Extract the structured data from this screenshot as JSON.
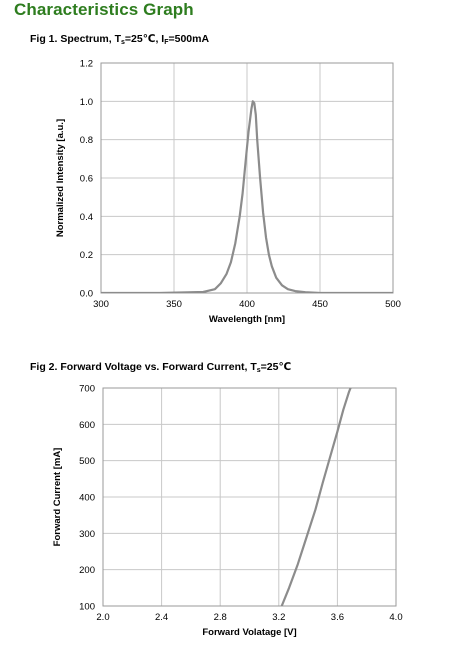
{
  "page": {
    "title": "Characteristics Graph"
  },
  "figures": [
    {
      "caption_parts": [
        "Fig 1. Spectrum, T",
        "s",
        "=25℃, I",
        "F",
        "=500mA"
      ]
    },
    {
      "caption_parts": [
        "Fig 2. Forward Voltage vs. Forward Current, T",
        "s",
        "=25℃"
      ]
    }
  ],
  "chart_data": [
    {
      "type": "line",
      "title": "Fig 1. Spectrum, Ts=25℃, IF=500mA",
      "xlabel": "Wavelength [nm]",
      "ylabel": "Normalized Intensity [a.u.]",
      "xlim": [
        300,
        500
      ],
      "ylim": [
        0.0,
        1.2
      ],
      "xticks": [
        "300",
        "350",
        "400",
        "450",
        "500"
      ],
      "yticks": [
        "0.0",
        "0.2",
        "0.4",
        "0.6",
        "0.8",
        "1.0",
        "1.2"
      ],
      "grid": true,
      "line_color": "#8c8c8c",
      "series": [
        {
          "x": [
            300,
            340,
            370,
            378,
            382,
            386,
            389,
            392,
            395,
            397,
            399,
            401,
            403,
            404,
            405,
            406,
            407,
            409,
            411,
            413,
            415,
            417,
            420,
            424,
            428,
            433,
            440,
            450,
            470,
            500
          ],
          "y": [
            0.0,
            0.0,
            0.005,
            0.02,
            0.05,
            0.1,
            0.16,
            0.26,
            0.4,
            0.52,
            0.68,
            0.84,
            0.96,
            1.0,
            0.99,
            0.93,
            0.8,
            0.6,
            0.42,
            0.29,
            0.2,
            0.14,
            0.08,
            0.04,
            0.02,
            0.01,
            0.004,
            0.0,
            0.0,
            0.0
          ]
        }
      ]
    },
    {
      "type": "line",
      "title": "Fig 2. Forward Voltage vs. Forward Current, Ts=25℃",
      "xlabel": "Forward  Volatage [V]",
      "ylabel": "Forward Current [mA]",
      "xlim": [
        2.0,
        4.0
      ],
      "ylim": [
        100,
        700
      ],
      "xticks": [
        "2.0",
        "2.4",
        "2.8",
        "3.2",
        "3.6",
        "4.0"
      ],
      "yticks": [
        "100",
        "200",
        "300",
        "400",
        "500",
        "600",
        "700"
      ],
      "grid": true,
      "line_color": "#8c8c8c",
      "series": [
        {
          "x": [
            3.22,
            3.27,
            3.33,
            3.39,
            3.45,
            3.5,
            3.55,
            3.6,
            3.64,
            3.68,
            3.71
          ],
          "y": [
            100,
            150,
            215,
            290,
            365,
            440,
            510,
            580,
            640,
            690,
            720
          ]
        }
      ]
    }
  ]
}
